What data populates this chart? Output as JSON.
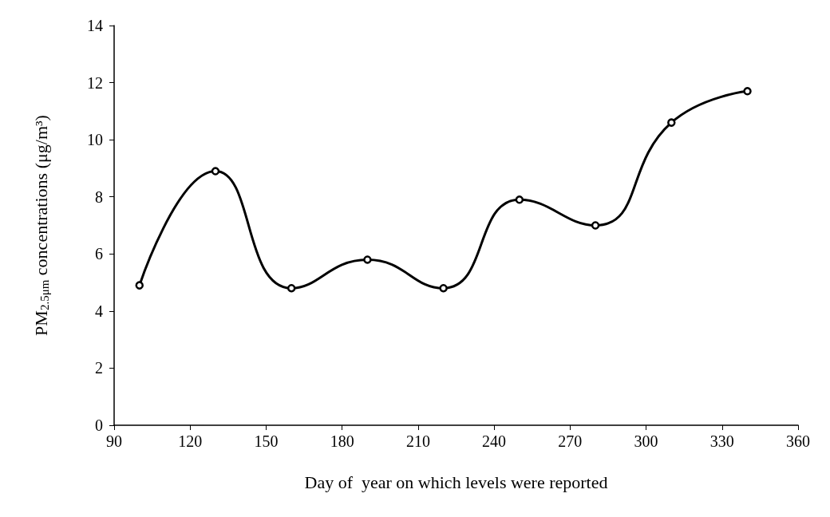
{
  "chart_data": {
    "type": "line",
    "xlabel": "Day of  year on which levels were reported",
    "ylabel": "PM$_{2.5μm}$ concentrations (μg/m³)",
    "x": [
      100,
      130,
      160,
      190,
      220,
      250,
      280,
      310,
      340
    ],
    "series": [
      {
        "color": "#000000",
        "values": [
          4.9,
          8.9,
          4.8,
          5.8,
          4.8,
          7.9,
          7.0,
          10.6,
          11.7
        ]
      }
    ],
    "xlim": [
      90,
      360
    ],
    "xticks": [
      90,
      120,
      150,
      180,
      210,
      240,
      270,
      300,
      330,
      360
    ],
    "ylim": [
      0,
      14
    ],
    "yticks": [
      0,
      2,
      4,
      6,
      8,
      10,
      12,
      14
    ],
    "marker": "circle",
    "line_style": "solid"
  }
}
